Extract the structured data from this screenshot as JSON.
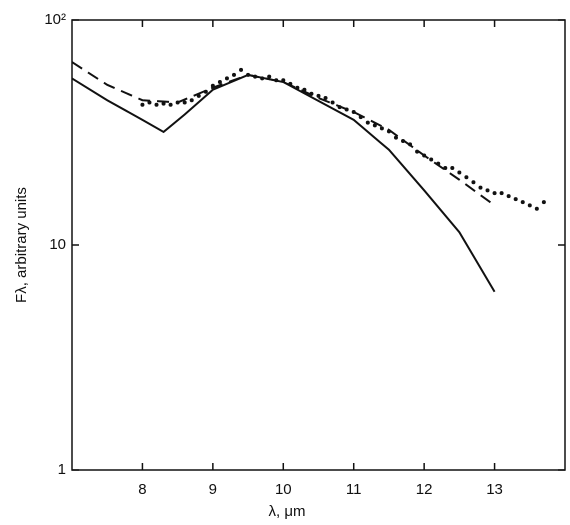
{
  "chart_data": {
    "type": "line",
    "xlabel": "λ, μm",
    "ylabel": "Fλ, arbitrary units",
    "xlim": [
      7,
      14
    ],
    "xticks": [
      8,
      9,
      10,
      11,
      12,
      13
    ],
    "ylim": [
      1,
      100
    ],
    "yticks": [
      1,
      10,
      {
        "value": 100,
        "label": "10²"
      }
    ],
    "log_y": true,
    "series": [
      {
        "type": "line",
        "style": "solid",
        "color": "#111111",
        "x": [
          7.0,
          7.5,
          8.0,
          8.3,
          8.6,
          9.0,
          9.5,
          10.0,
          11.0,
          11.5,
          12.0,
          12.5,
          13.0
        ],
        "values": [
          55,
          44,
          36,
          31.8,
          38,
          49,
          57,
          53,
          36,
          26.5,
          17.5,
          11.4,
          6.2
        ]
      },
      {
        "type": "line",
        "style": "dashed",
        "color": "#111111",
        "x": [
          7.0,
          7.5,
          8.0,
          8.5,
          9.0,
          9.5,
          10.0,
          10.5,
          11.0,
          11.5,
          12.0,
          12.5,
          13.0
        ],
        "values": [
          65,
          51.5,
          44,
          43,
          50,
          57,
          53,
          45,
          39,
          32.5,
          25,
          19.5,
          15
        ]
      },
      {
        "type": "scatter",
        "color": "#111111",
        "x": [
          8.0,
          8.1,
          8.2,
          8.3,
          8.4,
          8.5,
          8.6,
          8.7,
          8.8,
          8.9,
          9.0,
          9.1,
          9.2,
          9.3,
          9.4,
          9.5,
          9.6,
          9.7,
          9.8,
          9.9,
          10.0,
          10.1,
          10.2,
          10.3,
          10.4,
          10.5,
          10.6,
          10.7,
          10.8,
          10.9,
          11.0,
          11.1,
          11.2,
          11.3,
          11.4,
          11.5,
          11.6,
          11.7,
          11.8,
          11.9,
          12.0,
          12.1,
          12.2,
          12.3,
          12.4,
          12.5,
          12.6,
          12.7,
          12.8,
          12.9,
          13.0,
          13.1,
          13.2,
          13.3,
          13.4,
          13.5,
          13.6,
          13.7
        ],
        "values": [
          42,
          43,
          42,
          42.5,
          42,
          43,
          43,
          44,
          46,
          48,
          51,
          53,
          55,
          57,
          60,
          57,
          56,
          55,
          56,
          54,
          54,
          52,
          50,
          49,
          47,
          46,
          45,
          43,
          41,
          40,
          39,
          37,
          35,
          34,
          33,
          32,
          30,
          29,
          28,
          26,
          25,
          24,
          23,
          22,
          22,
          21,
          20,
          19,
          18,
          17.5,
          17,
          17,
          16.5,
          16,
          15.5,
          15,
          14.5,
          15.5
        ]
      }
    ]
  }
}
